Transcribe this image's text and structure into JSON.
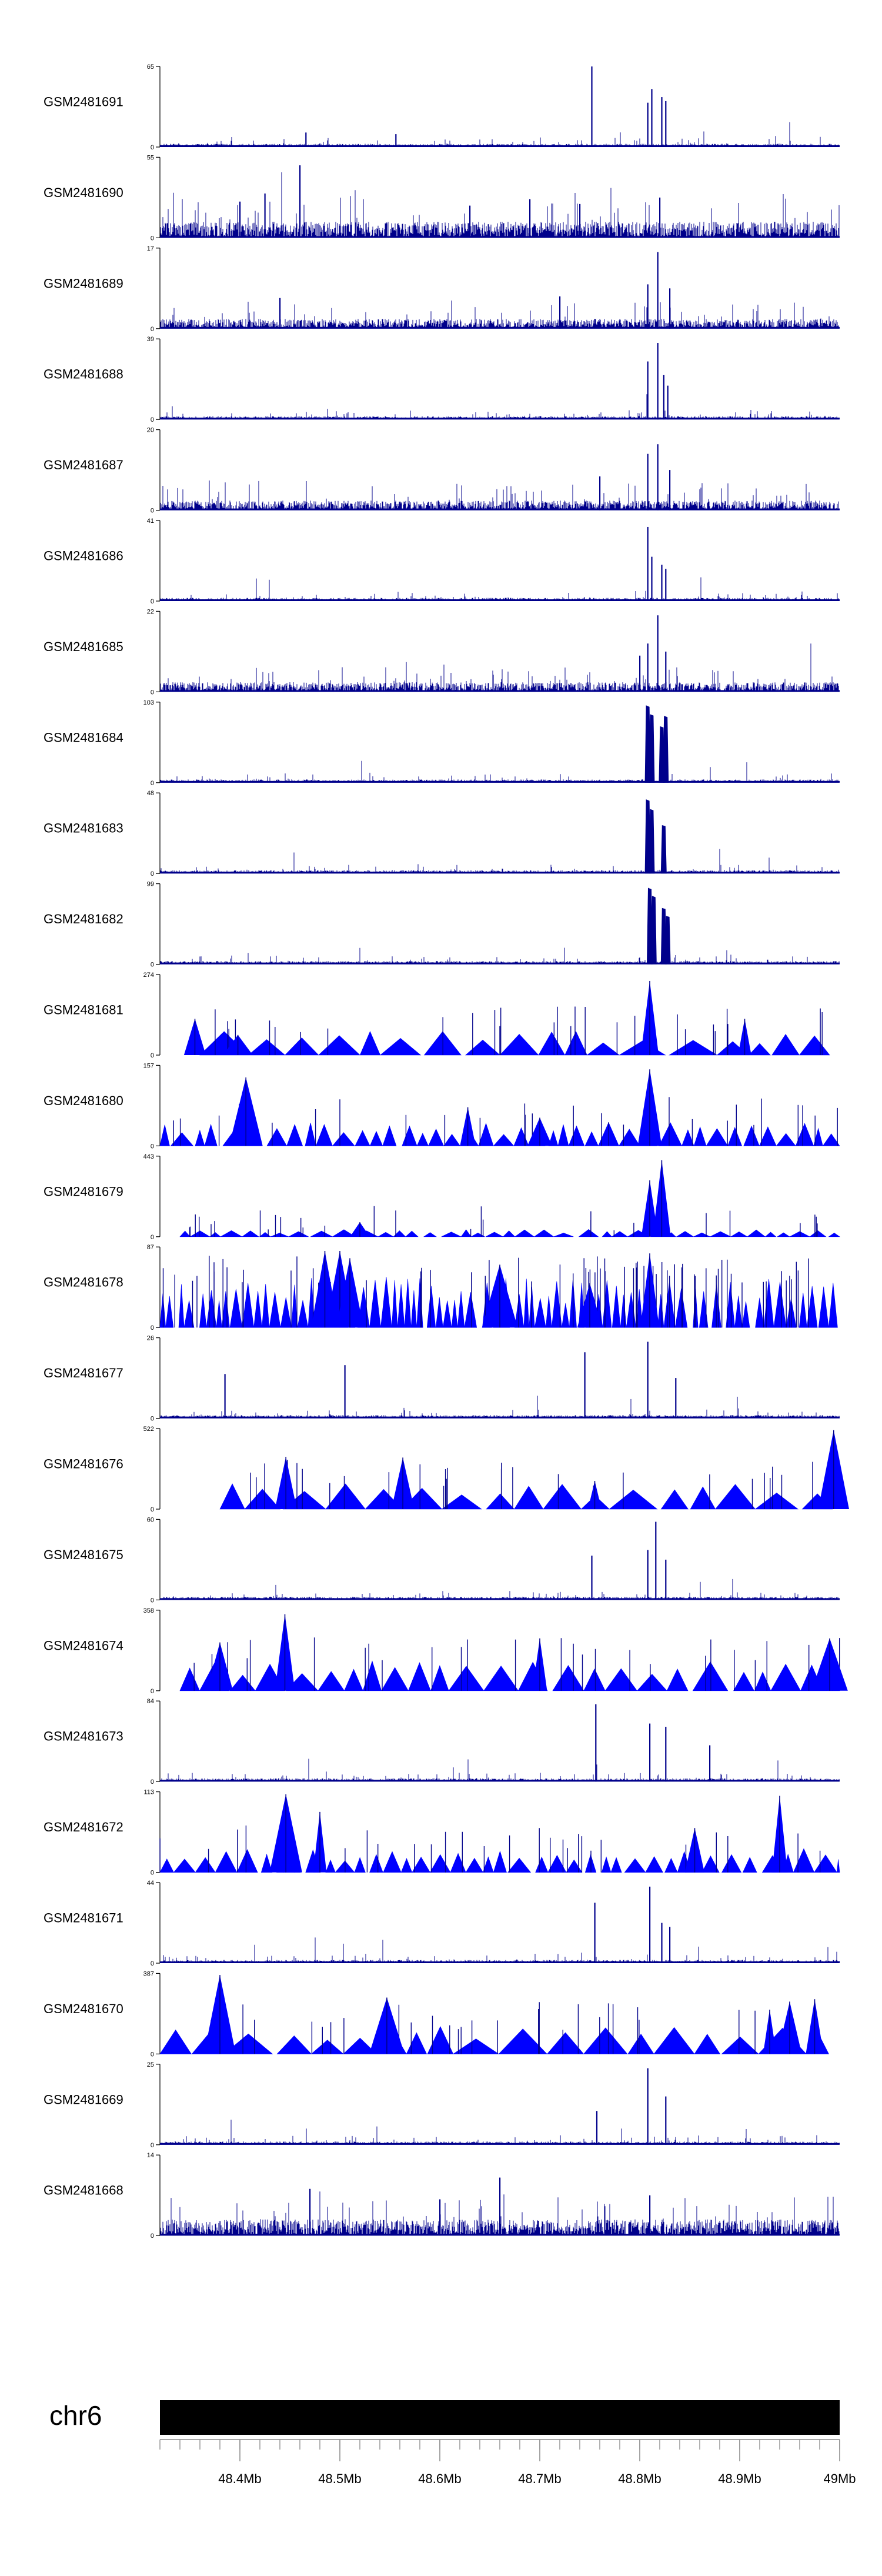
{
  "chart_data": {
    "type": "area",
    "title": "",
    "xlabel": "",
    "ylabel": "",
    "xlim": [
      48.32,
      49.0
    ],
    "x_unit": "Mb",
    "color": "#0000ff",
    "line_color": "#00008b",
    "tracks": [
      {
        "name": "GSM2481691",
        "ymax": 65,
        "ymin": 0,
        "style": "bars",
        "peaks": [
          [
            48.752,
            1.0
          ],
          [
            48.808,
            0.55
          ],
          [
            48.812,
            0.72
          ],
          [
            48.822,
            0.62
          ],
          [
            48.826,
            0.57
          ],
          [
            48.466,
            0.18
          ],
          [
            48.556,
            0.16
          ]
        ]
      },
      {
        "name": "GSM2481690",
        "ymax": 55,
        "ymin": 0,
        "style": "bars",
        "peaks": [
          [
            48.46,
            0.9
          ],
          [
            48.425,
            0.55
          ],
          [
            48.4,
            0.45
          ],
          [
            48.69,
            0.48
          ],
          [
            48.74,
            0.42
          ],
          [
            48.82,
            0.5
          ],
          [
            48.63,
            0.4
          ]
        ]
      },
      {
        "name": "GSM2481689",
        "ymax": 17,
        "ymin": 0,
        "style": "bars",
        "peaks": [
          [
            48.818,
            0.95
          ],
          [
            48.808,
            0.55
          ],
          [
            48.83,
            0.5
          ],
          [
            48.72,
            0.4
          ],
          [
            48.44,
            0.38
          ]
        ]
      },
      {
        "name": "GSM2481688",
        "ymax": 39,
        "ymin": 0,
        "style": "bars",
        "peaks": [
          [
            48.818,
            0.95
          ],
          [
            48.808,
            0.72
          ],
          [
            48.824,
            0.55
          ],
          [
            48.828,
            0.42
          ]
        ]
      },
      {
        "name": "GSM2481687",
        "ymax": 20,
        "ymin": 0,
        "style": "bars",
        "peaks": [
          [
            48.818,
            0.82
          ],
          [
            48.808,
            0.7
          ],
          [
            48.83,
            0.5
          ],
          [
            48.76,
            0.42
          ]
        ]
      },
      {
        "name": "GSM2481686",
        "ymax": 41,
        "ymin": 0,
        "style": "bars",
        "peaks": [
          [
            48.808,
            0.92
          ],
          [
            48.822,
            0.45
          ],
          [
            48.826,
            0.4
          ],
          [
            48.812,
            0.55
          ]
        ]
      },
      {
        "name": "GSM2481685",
        "ymax": 22,
        "ymin": 0,
        "style": "bars",
        "peaks": [
          [
            48.818,
            0.95
          ],
          [
            48.808,
            0.6
          ],
          [
            48.8,
            0.45
          ],
          [
            48.826,
            0.5
          ]
        ]
      },
      {
        "name": "GSM2481684",
        "ymax": 103,
        "ymin": 0,
        "style": "bars",
        "peaks": [
          [
            48.808,
            0.96
          ],
          [
            48.812,
            0.85
          ],
          [
            48.826,
            0.83
          ],
          [
            48.822,
            0.7
          ]
        ]
      },
      {
        "name": "GSM2481683",
        "ymax": 48,
        "ymin": 0,
        "style": "bars",
        "peaks": [
          [
            48.808,
            0.92
          ],
          [
            48.812,
            0.8
          ],
          [
            48.824,
            0.6
          ]
        ]
      },
      {
        "name": "GSM2481682",
        "ymax": 99,
        "ymin": 0,
        "style": "bars",
        "peaks": [
          [
            48.81,
            0.95
          ],
          [
            48.814,
            0.85
          ],
          [
            48.824,
            0.7
          ],
          [
            48.828,
            0.6
          ]
        ]
      },
      {
        "name": "GSM2481681",
        "ymax": 274,
        "ymin": 0,
        "style": "triangles",
        "peaks": [
          [
            48.355,
            0.45
          ],
          [
            48.398,
            0.25
          ],
          [
            48.81,
            0.92
          ],
          [
            48.905,
            0.45
          ]
        ],
        "x_start": 48.36,
        "x_end": 48.99
      },
      {
        "name": "GSM2481680",
        "ymax": 157,
        "ymin": 0,
        "style": "triangles",
        "peaks": [
          [
            48.406,
            0.85
          ],
          [
            48.81,
            0.95
          ],
          [
            48.628,
            0.48
          ],
          [
            48.7,
            0.35
          ]
        ],
        "x_start": 48.32,
        "x_end": 49.0
      },
      {
        "name": "GSM2481679",
        "ymax": 443,
        "ymin": 0,
        "style": "triangles",
        "peaks": [
          [
            48.822,
            0.95
          ],
          [
            48.81,
            0.7
          ],
          [
            48.52,
            0.18
          ]
        ],
        "x_start": 48.34,
        "x_end": 49.0
      },
      {
        "name": "GSM2481678",
        "ymax": 87,
        "ymin": 0,
        "style": "triangles",
        "peaks": [
          [
            48.485,
            0.95
          ],
          [
            48.5,
            0.95
          ],
          [
            48.51,
            0.86
          ],
          [
            48.66,
            0.78
          ],
          [
            48.81,
            0.92
          ],
          [
            48.75,
            0.55
          ]
        ],
        "x_start": 48.32,
        "x_end": 49.0
      },
      {
        "name": "GSM2481677",
        "ymax": 26,
        "ymin": 0,
        "style": "bars",
        "peaks": [
          [
            48.808,
            0.95
          ],
          [
            48.745,
            0.82
          ],
          [
            48.505,
            0.66
          ],
          [
            48.385,
            0.55
          ],
          [
            48.836,
            0.5
          ]
        ]
      },
      {
        "name": "GSM2481676",
        "ymax": 522,
        "ymin": 0,
        "style": "triangles",
        "peaks": [
          [
            48.446,
            0.65
          ],
          [
            48.563,
            0.64
          ],
          [
            48.994,
            0.98
          ],
          [
            48.755,
            0.35
          ]
        ],
        "x_start": 48.38,
        "x_end": 48.995
      },
      {
        "name": "GSM2481675",
        "ymax": 60,
        "ymin": 0,
        "style": "bars",
        "peaks": [
          [
            48.816,
            0.97
          ],
          [
            48.808,
            0.62
          ],
          [
            48.752,
            0.55
          ],
          [
            48.826,
            0.5
          ]
        ]
      },
      {
        "name": "GSM2481674",
        "ymax": 358,
        "ymin": 0,
        "style": "triangles",
        "peaks": [
          [
            48.445,
            0.95
          ],
          [
            48.7,
            0.65
          ],
          [
            48.99,
            0.65
          ],
          [
            48.38,
            0.6
          ]
        ],
        "x_start": 48.34,
        "x_end": 49.0
      },
      {
        "name": "GSM2481673",
        "ymax": 84,
        "ymin": 0,
        "style": "bars",
        "peaks": [
          [
            48.756,
            0.96
          ],
          [
            48.81,
            0.72
          ],
          [
            48.826,
            0.68
          ],
          [
            48.87,
            0.45
          ]
        ]
      },
      {
        "name": "GSM2481672",
        "ymax": 113,
        "ymin": 0,
        "style": "triangles",
        "peaks": [
          [
            48.446,
            0.97
          ],
          [
            48.48,
            0.75
          ],
          [
            48.94,
            0.95
          ],
          [
            48.855,
            0.55
          ]
        ],
        "x_start": 48.32,
        "x_end": 49.0
      },
      {
        "name": "GSM2481671",
        "ymax": 44,
        "ymin": 0,
        "style": "bars",
        "peaks": [
          [
            48.81,
            0.95
          ],
          [
            48.755,
            0.75
          ],
          [
            48.822,
            0.5
          ],
          [
            48.83,
            0.45
          ]
        ]
      },
      {
        "name": "GSM2481670",
        "ymax": 387,
        "ymin": 0,
        "style": "triangles",
        "peaks": [
          [
            48.38,
            0.98
          ],
          [
            48.547,
            0.7
          ],
          [
            48.975,
            0.68
          ],
          [
            48.95,
            0.65
          ],
          [
            48.93,
            0.55
          ]
        ],
        "x_start": 48.32,
        "x_end": 48.99
      },
      {
        "name": "GSM2481669",
        "ymax": 25,
        "ymin": 0,
        "style": "bars",
        "peaks": [
          [
            48.808,
            0.95
          ],
          [
            48.826,
            0.6
          ],
          [
            48.757,
            0.42
          ]
        ]
      },
      {
        "name": "GSM2481668",
        "ymax": 14,
        "ymin": 0,
        "style": "bars",
        "peaks": [
          [
            48.66,
            0.72
          ],
          [
            48.47,
            0.58
          ],
          [
            48.6,
            0.45
          ],
          [
            48.81,
            0.5
          ]
        ]
      }
    ],
    "chromosome": "chr6",
    "x_ticks": [
      {
        "value": 48.4,
        "label": "48.4Mb"
      },
      {
        "value": 48.5,
        "label": "48.5Mb"
      },
      {
        "value": 48.6,
        "label": "48.6Mb"
      },
      {
        "value": 48.7,
        "label": "48.7Mb"
      },
      {
        "value": 48.8,
        "label": "48.8Mb"
      },
      {
        "value": 48.9,
        "label": "48.9Mb"
      },
      {
        "value": 49.0,
        "label": "49Mb"
      }
    ],
    "minor_tick_step": 0.02
  }
}
